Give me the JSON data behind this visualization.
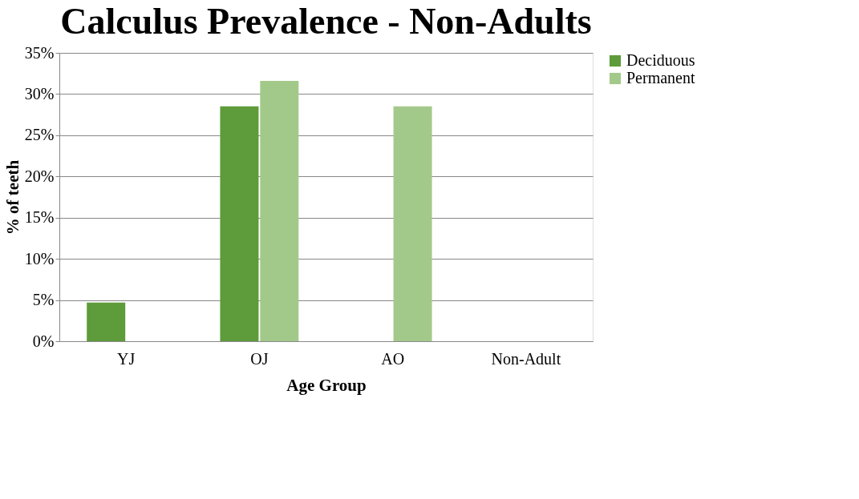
{
  "chart_data": {
    "type": "bar",
    "title": "Calculus Prevalence - Non-Adults",
    "xlabel": "Age Group",
    "ylabel": "% of teeth",
    "categories": [
      "YJ",
      "OJ",
      "AO",
      "Non-Adult"
    ],
    "series": [
      {
        "name": "Deciduous",
        "color": "#5e9b3a",
        "values": [
          4.7,
          28.5,
          0,
          0
        ]
      },
      {
        "name": "Permanent",
        "color": "#a3c98a",
        "values": [
          0,
          31.6,
          28.5,
          0
        ]
      }
    ],
    "ylim": [
      0,
      35
    ],
    "yticks": [
      {
        "value": 0,
        "label": "0%"
      },
      {
        "value": 5,
        "label": "5%"
      },
      {
        "value": 10,
        "label": "10%"
      },
      {
        "value": 15,
        "label": "15%"
      },
      {
        "value": 20,
        "label": "20%"
      },
      {
        "value": 25,
        "label": "25%"
      },
      {
        "value": 30,
        "label": "30%"
      },
      {
        "value": 35,
        "label": "35%"
      }
    ],
    "grid": "y",
    "legend": "right"
  }
}
